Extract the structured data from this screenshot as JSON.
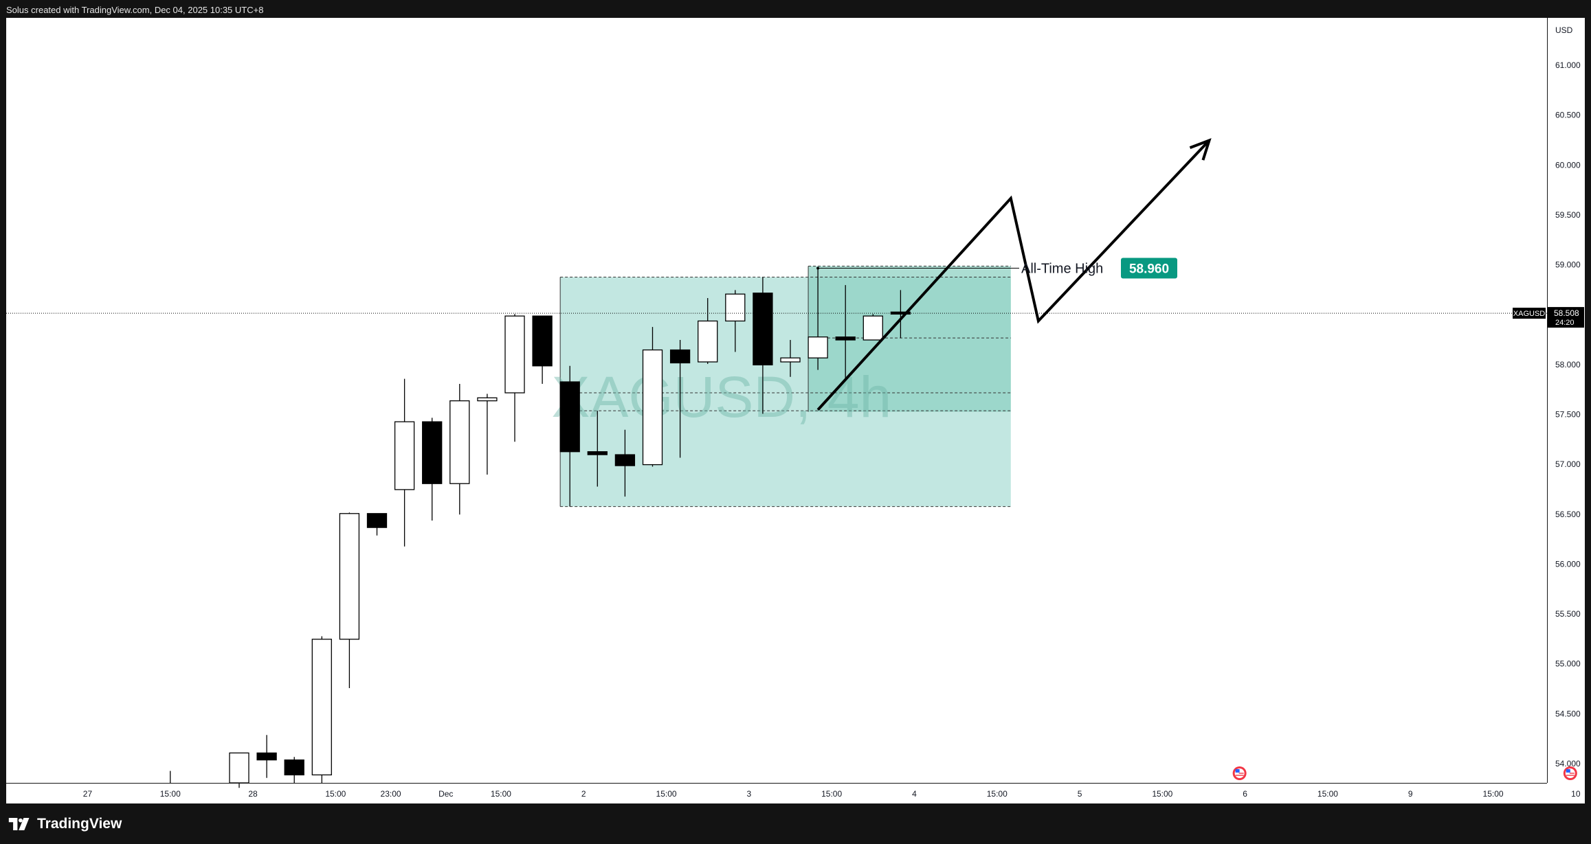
{
  "header": {
    "caption": "Solus created with TradingView.com, Dec 04, 2025 10:35 UTC+8"
  },
  "footer": {
    "brand": "TradingView"
  },
  "colors": {
    "up_body": "#ffffff",
    "down_body": "#000000",
    "zone_fill": "#b7e3dc",
    "zone_dark_fill": "#8fd1c3",
    "ath_badge": "#089981",
    "price_tag": "#000000",
    "axis_text": "#131722"
  },
  "icons": [
    "event-flag-us-icon",
    "tradingview-logo-icon"
  ],
  "chart_data": {
    "type": "candlestick",
    "symbol": "XAGUSD",
    "timeframe": "4h",
    "watermark": "XAGUSD, 4h",
    "currency": "USD",
    "ylim": [
      53.8,
      61.4
    ],
    "y_ticks": [
      "61.000",
      "60.500",
      "60.000",
      "59.500",
      "59.000",
      "58.500",
      "58.000",
      "57.500",
      "57.000",
      "56.500",
      "56.000",
      "55.500",
      "55.000",
      "54.500",
      "54.000"
    ],
    "x_ticks": [
      {
        "label": "27",
        "i": -5.5
      },
      {
        "label": "15:00",
        "i": -2.5
      },
      {
        "label": "28",
        "i": 0.5
      },
      {
        "label": "15:00",
        "i": 3.5
      },
      {
        "label": "23:00",
        "i": 5.5
      },
      {
        "label": "Dec",
        "i": 7.5
      },
      {
        "label": "15:00",
        "i": 9.5
      },
      {
        "label": "2",
        "i": 12.5
      },
      {
        "label": "15:00",
        "i": 15.5
      },
      {
        "label": "3",
        "i": 18.5
      },
      {
        "label": "15:00",
        "i": 21.5
      },
      {
        "label": "4",
        "i": 24.5
      },
      {
        "label": "15:00",
        "i": 27.5
      },
      {
        "label": "5",
        "i": 30.5
      },
      {
        "label": "15:00",
        "i": 33.5
      },
      {
        "label": "6",
        "i": 36.5
      },
      {
        "label": "15:00",
        "i": 39.5
      },
      {
        "label": "9",
        "i": 42.5
      },
      {
        "label": "15:00",
        "i": 45.5
      },
      {
        "label": "10",
        "i": 48.5
      }
    ],
    "ohlc": [
      {
        "o": 53.8,
        "h": 54.1,
        "l": 53.75,
        "c": 54.1
      },
      {
        "o": 54.1,
        "h": 54.28,
        "l": 53.85,
        "c": 54.03
      },
      {
        "o": 54.03,
        "h": 54.06,
        "l": 53.8,
        "c": 53.88
      },
      {
        "o": 53.88,
        "h": 55.27,
        "l": 53.8,
        "c": 55.24
      },
      {
        "o": 55.24,
        "h": 56.51,
        "l": 54.75,
        "c": 56.5
      },
      {
        "o": 56.5,
        "h": 56.5,
        "l": 56.28,
        "c": 56.36
      },
      {
        "o": 56.74,
        "h": 57.85,
        "l": 56.17,
        "c": 57.42
      },
      {
        "o": 57.42,
        "h": 57.46,
        "l": 56.43,
        "c": 56.8
      },
      {
        "o": 56.8,
        "h": 57.8,
        "l": 56.49,
        "c": 57.63
      },
      {
        "o": 57.63,
        "h": 57.7,
        "l": 56.89,
        "c": 57.66
      },
      {
        "o": 57.71,
        "h": 58.5,
        "l": 57.22,
        "c": 58.48
      },
      {
        "o": 58.48,
        "h": 58.48,
        "l": 57.8,
        "c": 57.98
      },
      {
        "o": 57.82,
        "h": 57.98,
        "l": 56.57,
        "c": 57.12
      },
      {
        "o": 57.12,
        "h": 57.53,
        "l": 56.77,
        "c": 57.09
      },
      {
        "o": 57.09,
        "h": 57.34,
        "l": 56.67,
        "c": 56.98
      },
      {
        "o": 56.99,
        "h": 58.37,
        "l": 56.97,
        "c": 58.14
      },
      {
        "o": 58.14,
        "h": 58.24,
        "l": 57.06,
        "c": 58.01
      },
      {
        "o": 58.02,
        "h": 58.66,
        "l": 58.0,
        "c": 58.43
      },
      {
        "o": 58.43,
        "h": 58.74,
        "l": 58.12,
        "c": 58.7
      },
      {
        "o": 58.71,
        "h": 58.87,
        "l": 57.5,
        "c": 57.99
      },
      {
        "o": 58.02,
        "h": 58.24,
        "l": 57.87,
        "c": 58.06
      },
      {
        "o": 58.06,
        "h": 58.96,
        "l": 57.94,
        "c": 58.27
      },
      {
        "o": 58.27,
        "h": 58.79,
        "l": 57.83,
        "c": 58.24
      },
      {
        "o": 58.24,
        "h": 58.5,
        "l": 58.24,
        "c": 58.48
      },
      {
        "o": 58.52,
        "h": 58.74,
        "l": 58.26,
        "c": 58.5
      }
    ],
    "first_visible_bar_x_label": "28",
    "last_price": {
      "label": "XAGUSD",
      "value": "58.508",
      "countdown": "24:20",
      "y": 58.508
    },
    "all_time_high": {
      "label": "All-Time High",
      "value": "58.960",
      "y": 58.96
    },
    "zones": [
      {
        "name": "light",
        "i0": 12,
        "i1": 28,
        "y0": 56.57,
        "y1": 58.87
      },
      {
        "name": "dark",
        "i0": 21,
        "i1": 28,
        "y0": 57.52,
        "y1": 58.98
      }
    ],
    "zone_dashed_levels": [
      {
        "i0": 12,
        "i1": 28,
        "y": 58.87
      },
      {
        "i0": 12,
        "i1": 28,
        "y": 56.57
      },
      {
        "i0": 21,
        "i1": 28,
        "y": 58.98
      },
      {
        "i0": 21,
        "i1": 28,
        "y": 58.26
      },
      {
        "i0": 12,
        "i1": 28,
        "y": 57.71
      },
      {
        "i0": 12,
        "i1": 28,
        "y": 57.53
      }
    ],
    "projection_path": [
      {
        "i": 21.0,
        "y": 57.54
      },
      {
        "i": 28.0,
        "y": 59.66
      },
      {
        "i": 29.0,
        "y": 58.43
      },
      {
        "i": 35.2,
        "y": 60.24
      }
    ],
    "event_flags": [
      {
        "i": 36.3
      },
      {
        "i": 48.3
      }
    ],
    "misc_marks": [
      {
        "i": -2.5,
        "y0": 53.8,
        "y1": 53.92
      }
    ]
  }
}
